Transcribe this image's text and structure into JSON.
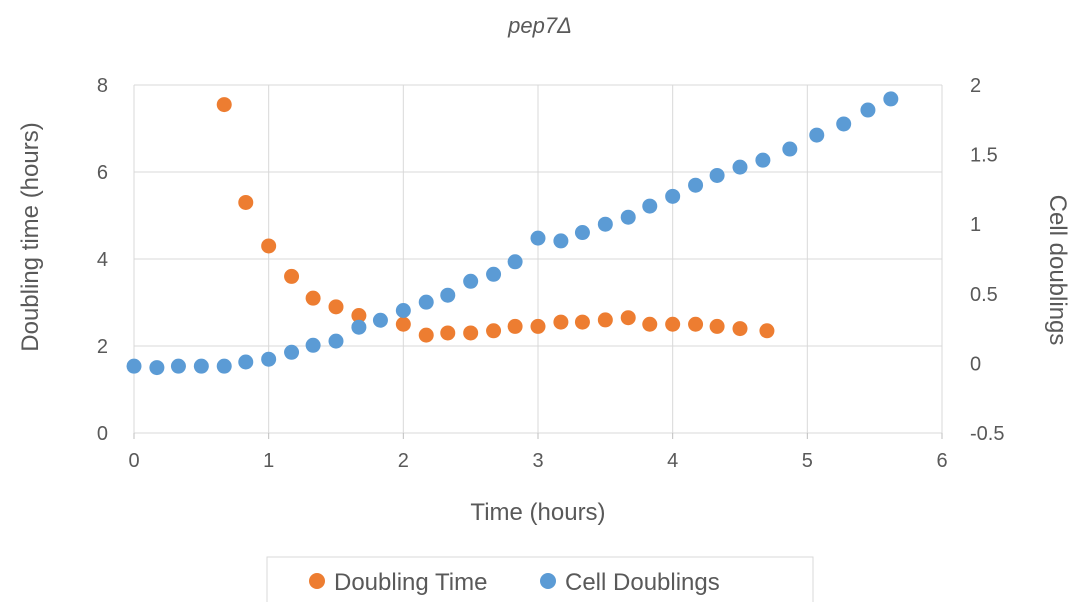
{
  "chart_data": {
    "type": "scatter",
    "title": "pep7Δ",
    "xlabel": "Time (hours)",
    "ylabel": "Doubling time (hours)",
    "y2label": "Cell doublings",
    "xlim": [
      0,
      6
    ],
    "ylim": [
      0,
      8
    ],
    "y2lim": [
      -0.5,
      2
    ],
    "xticks": [
      0,
      1,
      2,
      3,
      4,
      5,
      6
    ],
    "yticks": [
      0,
      2,
      4,
      6,
      8
    ],
    "y2ticks": [
      -0.5,
      0,
      0.5,
      1,
      1.5,
      2
    ],
    "grid": true,
    "legend_position": "bottom",
    "series": [
      {
        "name": "Doubling Time",
        "axis": "left",
        "color": "#ED7D31",
        "x": [
          0.67,
          0.83,
          1.0,
          1.17,
          1.33,
          1.5,
          1.67,
          2.0,
          2.17,
          2.33,
          2.5,
          2.67,
          2.83,
          3.0,
          3.17,
          3.33,
          3.5,
          3.67,
          3.83,
          4.0,
          4.17,
          4.33,
          4.5,
          4.7
        ],
        "y": [
          7.55,
          5.3,
          4.3,
          3.6,
          3.1,
          2.9,
          2.7,
          2.5,
          2.25,
          2.3,
          2.3,
          2.35,
          2.45,
          2.45,
          2.55,
          2.55,
          2.6,
          2.65,
          2.5,
          2.5,
          2.5,
          2.45,
          2.4,
          2.35
        ]
      },
      {
        "name": "Cell Doublings",
        "axis": "right",
        "color": "#5B9BD5",
        "x": [
          0.0,
          0.17,
          0.33,
          0.5,
          0.67,
          0.83,
          1.0,
          1.17,
          1.33,
          1.5,
          1.67,
          1.83,
          2.0,
          2.17,
          2.33,
          2.5,
          2.67,
          2.83,
          3.0,
          3.17,
          3.33,
          3.5,
          3.67,
          3.83,
          4.0,
          4.17,
          4.33,
          4.5,
          4.67,
          4.87,
          5.07,
          5.27,
          5.45,
          5.62
        ],
        "y": [
          -0.02,
          -0.03,
          -0.02,
          -0.02,
          -0.02,
          0.01,
          0.03,
          0.08,
          0.13,
          0.16,
          0.26,
          0.31,
          0.38,
          0.44,
          0.49,
          0.59,
          0.64,
          0.73,
          0.9,
          0.88,
          0.94,
          1.0,
          1.05,
          1.13,
          1.2,
          1.28,
          1.35,
          1.41,
          1.46,
          1.54,
          1.64,
          1.72,
          1.82,
          1.9
        ]
      }
    ]
  }
}
